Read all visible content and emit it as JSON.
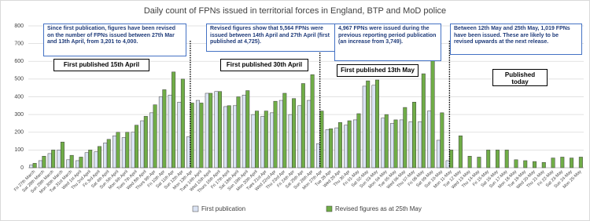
{
  "chart_data": {
    "type": "bar",
    "title": "Daily count of FPNs issued in territorial forces in England, BTP and MoD police",
    "categories": [
      "Fri 27th March",
      "Sat 28th March",
      "Sun 29th March",
      "Mon 30th March",
      "Tue 31st March",
      "Wed 1st April",
      "Thu 2nd April",
      "Fri 3rd April",
      "Sat 4th April",
      "Sun 5th April",
      "Mon 6th April",
      "Tues 7th April",
      "Wed 8th April",
      "Thurs 9th Apr",
      "Fri 10th Apr",
      "Sat 11th Apr",
      "Sun 12th Apr",
      "Mon 13th Apr",
      "Tues 14th April",
      "Wed 15th April",
      "Thurs 16th April",
      "Fri 17th April",
      "Sat 18th April",
      "Sun 19th April",
      "Mon 20th April",
      "Tues 21st Apr",
      "Wed 22nd Apr",
      "Thu 23rd Apr",
      "Fri 24th Apr",
      "Sat 25th Apr",
      "Sun 26th Apr",
      "Mon 27th Apr",
      "Tue 28 Apr",
      "Wed 29 Apr",
      "Thu 30 Apr",
      "Fri 01-May",
      "Sat 02-May",
      "Sun 03-May",
      "Mon 04-May",
      "Tue 05-May",
      "Wed 06-May",
      "Thu 07-May",
      "Fri 08-May",
      "Sat 09-May",
      "Sun 10-May",
      "Mon 11-May",
      "Tue 12 May",
      "Wed 13-May",
      "Thu 14-May",
      "Fri 15-May",
      "Sat 16-May",
      "Sun 17-May",
      "Mon 18-May",
      "Tue 19-May",
      "Wed 20-May",
      "Thu 21-May",
      "Fri 22-May",
      "Sat 23-May",
      "Sun 24-May",
      "Mon 25-May"
    ],
    "series": [
      {
        "name": "First publication",
        "color": "#dae3f3",
        "values": [
          15,
          40,
          80,
          100,
          45,
          40,
          85,
          90,
          140,
          180,
          170,
          200,
          265,
          310,
          400,
          410,
          370,
          175,
          380,
          420,
          430,
          345,
          350,
          410,
          300,
          290,
          310,
          380,
          300,
          350,
          380,
          135,
          215,
          225,
          240,
          270,
          460,
          465,
          280,
          250,
          270,
          260,
          260,
          320,
          155,
          40,
          null,
          null,
          null,
          null,
          null,
          null,
          null,
          null,
          null,
          null,
          null,
          null,
          null,
          null
        ]
      },
      {
        "name": "Revised figures as at 25th May",
        "color": "#70ad47",
        "values": [
          25,
          65,
          100,
          145,
          70,
          60,
          100,
          120,
          160,
          200,
          200,
          240,
          290,
          355,
          440,
          540,
          500,
          365,
          365,
          420,
          430,
          350,
          400,
          435,
          320,
          320,
          375,
          420,
          390,
          475,
          525,
          320,
          220,
          255,
          265,
          305,
          490,
          495,
          300,
          270,
          340,
          370,
          530,
          695,
          310,
          100,
          180,
          65,
          60,
          100,
          100,
          100,
          45,
          40,
          35,
          30,
          55,
          60,
          55,
          60
        ]
      }
    ],
    "ylim": [
      0,
      800
    ],
    "yticks": [
      0,
      100,
      200,
      300,
      400,
      500,
      600,
      700,
      800
    ],
    "grid": true,
    "annotations": [
      "Since first publication,  figures have been revised on the number of FPNs issued between 27th Mar and 13th April, from 3,201 to 4,000.",
      "Revised figures show that 5,564 FPNs were issued between 14th April and 27th April (first published at 4,725).",
      "4,967 FPNs were issued during the previous reporting period publication (an increase from 3,749).",
      "Between 12th May and 25th May, 1,019 FPNs have been issued. These are likely to be revised upwards at the next release."
    ],
    "period_labels": [
      "First published 15th April",
      "First published 30th April",
      "First published 13th May",
      "Published today"
    ]
  }
}
